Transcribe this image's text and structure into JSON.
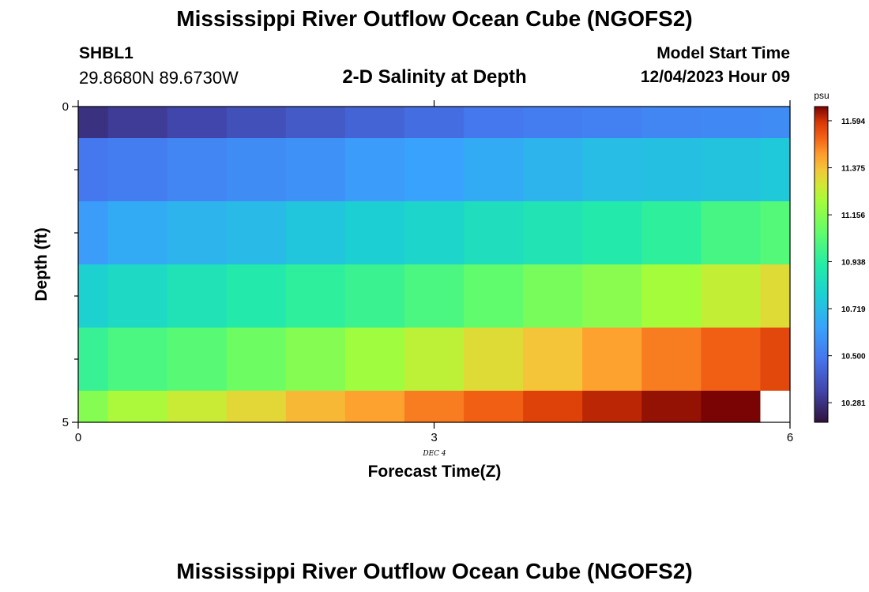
{
  "page": {
    "title_top": "Mississippi River Outflow Ocean Cube (NGOFS2)",
    "title_bottom": "Mississippi River Outflow Ocean Cube (NGOFS2)",
    "station_id": "SHBL1",
    "coordinates": "29.8680N  89.6730W",
    "subtitle": "2-D Salinity at Depth",
    "model_start_label": "Model Start Time",
    "model_start_value": "12/04/2023 Hour 09"
  },
  "chart_data": {
    "type": "heatmap",
    "title": "2-D Salinity at Depth",
    "xlabel": "Forecast Time(Z)",
    "ylabel": "Depth (ft)",
    "x_ticks": [
      "0",
      "3",
      "6"
    ],
    "y_ticks": [
      "0",
      "5"
    ],
    "x_date_label": "DEC 4",
    "xlim": [
      0,
      6
    ],
    "ylim": [
      0,
      5
    ],
    "x_edges": [
      0,
      0.25,
      0.75,
      1.25,
      1.75,
      2.25,
      2.75,
      3.25,
      3.75,
      4.25,
      4.75,
      5.25,
      5.75,
      6
    ],
    "y_edges": [
      0,
      0.5,
      1.5,
      2.5,
      3.5,
      4.5,
      5
    ],
    "values": [
      [
        10.28,
        10.31,
        10.34,
        10.37,
        10.4,
        10.43,
        10.46,
        10.49,
        10.51,
        10.52,
        10.54,
        10.55,
        10.56
      ],
      [
        10.49,
        10.51,
        10.54,
        10.56,
        10.58,
        10.61,
        10.63,
        10.66,
        10.69,
        10.72,
        10.73,
        10.74,
        10.76
      ],
      [
        10.61,
        10.66,
        10.69,
        10.71,
        10.75,
        10.78,
        10.81,
        10.85,
        10.88,
        10.91,
        10.95,
        11.01,
        11.04
      ],
      [
        10.79,
        10.83,
        10.87,
        10.91,
        10.95,
        10.98,
        11.02,
        11.07,
        11.12,
        11.16,
        11.22,
        11.27,
        11.32
      ],
      [
        10.97,
        11.02,
        11.05,
        11.1,
        11.15,
        11.21,
        11.26,
        11.32,
        11.37,
        11.43,
        11.48,
        11.52,
        11.56
      ],
      [
        11.15,
        11.23,
        11.28,
        11.33,
        11.39,
        11.43,
        11.48,
        11.52,
        11.57,
        11.61,
        11.64,
        11.67,
        null
      ]
    ],
    "colorbar": {
      "units": "psu",
      "min": 10.19,
      "max": 11.66,
      "ticks": [
        "11.594",
        "11.375",
        "11.156",
        "10.938",
        "10.719",
        "10.500",
        "10.281"
      ]
    }
  }
}
